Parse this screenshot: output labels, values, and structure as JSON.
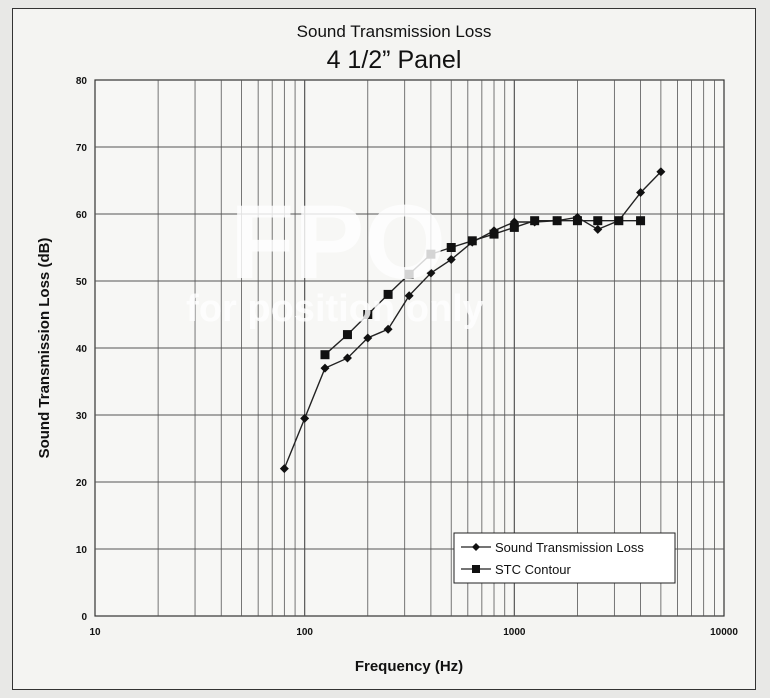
{
  "chart_data": {
    "type": "line",
    "title": "Sound Transmission Loss",
    "subtitle": "4 1/2” Panel",
    "xlabel": "Frequency (Hz)",
    "ylabel": "Sound Transmission Loss (dB)",
    "x_scale": "log",
    "xlim": [
      10,
      10000
    ],
    "ylim": [
      0,
      80
    ],
    "x_ticks": [
      "10",
      "100",
      "1000",
      "10000"
    ],
    "y_ticks": [
      "0",
      "10",
      "20",
      "30",
      "40",
      "50",
      "60",
      "70",
      "80"
    ],
    "grid": true,
    "legend_position": "bottom-right",
    "series": [
      {
        "name": "Sound Transmission Loss",
        "marker": "diamond",
        "x": [
          80,
          100,
          125,
          160,
          200,
          250,
          315,
          400,
          500,
          630,
          800,
          1000,
          1250,
          1600,
          2000,
          2500,
          3150,
          4000,
          5000
        ],
        "values": [
          22,
          29.5,
          37,
          38.5,
          41.5,
          42.8,
          47.8,
          51.2,
          53.2,
          55.8,
          57.5,
          58.8,
          58.8,
          59,
          59.5,
          57.7,
          59,
          63.2,
          66.3
        ]
      },
      {
        "name": "STC Contour",
        "marker": "square",
        "x": [
          125,
          160,
          200,
          250,
          315,
          400,
          500,
          630,
          800,
          1000,
          1250,
          1600,
          2000,
          2500,
          3150,
          4000
        ],
        "values": [
          39,
          42,
          45,
          48,
          51,
          54,
          55,
          56,
          57,
          58,
          59,
          59,
          59,
          59,
          59,
          59
        ]
      }
    ],
    "watermark": {
      "big": "FPO",
      "small": "for position only"
    }
  }
}
